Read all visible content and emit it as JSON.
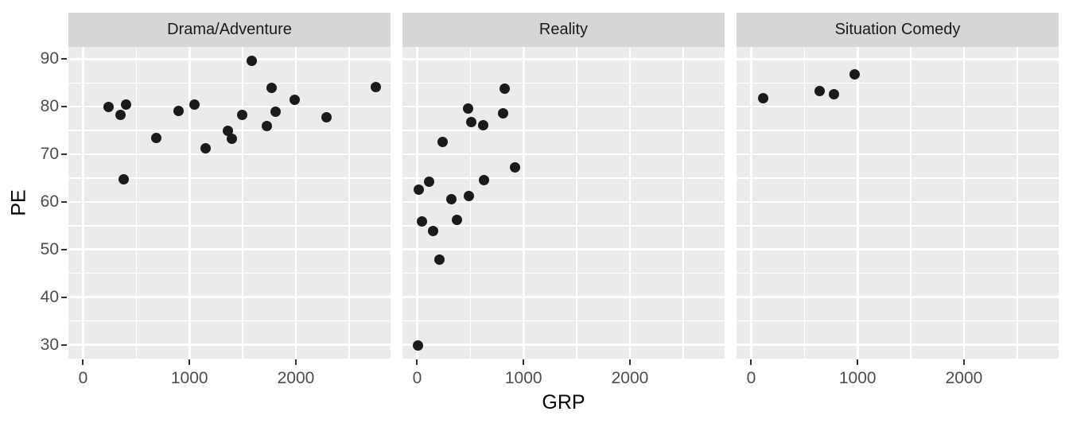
{
  "chart_data": {
    "type": "scatter",
    "title": "",
    "xlabel": "GRP",
    "ylabel": "PE",
    "legend": "none",
    "grid": "white major+minor gridlines on gray panels",
    "x_ticks": [
      0,
      1000,
      2000
    ],
    "x_minor_ticks": [
      500,
      1500,
      2500
    ],
    "y_ticks": [
      30,
      40,
      50,
      60,
      70,
      80,
      90
    ],
    "y_minor_ticks": [
      35,
      45,
      55,
      65,
      75,
      85
    ],
    "xlim": [
      -138,
      2890
    ],
    "ylim": [
      27,
      92.5
    ],
    "point_color": "#1a1a1a",
    "panel_bg": "#ebebeb",
    "strip_bg": "#d6d6d6",
    "grid_color": "#ffffff",
    "tick_label_color": "#4d4d4d",
    "tick_mark_color": "#333333",
    "points_format": [
      "GRP",
      "PE"
    ],
    "facets": [
      {
        "label": "Drama/Adventure",
        "points": [
          [
            240,
            79.9
          ],
          [
            355,
            78.3
          ],
          [
            405,
            80.4
          ],
          [
            385,
            64.8
          ],
          [
            685,
            73.5
          ],
          [
            895,
            79.1
          ],
          [
            1045,
            80.5
          ],
          [
            1150,
            71.2
          ],
          [
            1360,
            75.0
          ],
          [
            1400,
            73.3
          ],
          [
            1495,
            78.3
          ],
          [
            1585,
            89.7
          ],
          [
            1730,
            75.9
          ],
          [
            1775,
            84.0
          ],
          [
            1810,
            79.0
          ],
          [
            1990,
            81.5
          ],
          [
            2290,
            77.7
          ],
          [
            2750,
            84.1
          ]
        ]
      },
      {
        "label": "Reality",
        "points": [
          [
            10,
            29.9
          ],
          [
            15,
            62.6
          ],
          [
            45,
            55.9
          ],
          [
            110,
            64.3
          ],
          [
            150,
            53.9
          ],
          [
            210,
            47.8
          ],
          [
            240,
            72.6
          ],
          [
            320,
            60.6
          ],
          [
            375,
            56.2
          ],
          [
            480,
            79.6
          ],
          [
            490,
            61.2
          ],
          [
            505,
            76.7
          ],
          [
            620,
            76.1
          ],
          [
            625,
            64.5
          ],
          [
            810,
            78.6
          ],
          [
            820,
            83.7
          ],
          [
            920,
            67.3
          ]
        ]
      },
      {
        "label": "Situation Comedy",
        "points": [
          [
            115,
            81.7
          ],
          [
            640,
            83.3
          ],
          [
            775,
            82.6
          ],
          [
            970,
            86.8
          ]
        ]
      }
    ]
  }
}
